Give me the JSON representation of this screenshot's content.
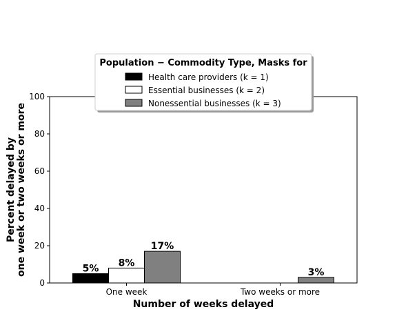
{
  "chart_data": {
    "type": "bar",
    "categories": [
      "One week",
      "Two weeks or more"
    ],
    "series": [
      {
        "name": "Health care providers (k = 1)",
        "values": [
          5,
          0
        ],
        "labels": [
          "5%",
          ""
        ],
        "color": "#000000"
      },
      {
        "name": "Essential businesses (k = 2)",
        "values": [
          8,
          0
        ],
        "labels": [
          "8%",
          ""
        ],
        "color": "#ffffff"
      },
      {
        "name": "Nonessential businesses (k = 3)",
        "values": [
          17,
          3
        ],
        "labels": [
          "17%",
          "3%"
        ],
        "color": "#808080"
      }
    ],
    "xlabel": "Number of weeks delayed",
    "ylabel_line1": "Percent delayed by",
    "ylabel_line2": "one week or two weeks or more",
    "ylim": [
      0,
      100
    ],
    "yticks": [
      0,
      20,
      40,
      60,
      80,
      100
    ],
    "legend_title": "Population − Commodity Type,  Masks for",
    "legend_position": "top-center",
    "grid": false
  }
}
